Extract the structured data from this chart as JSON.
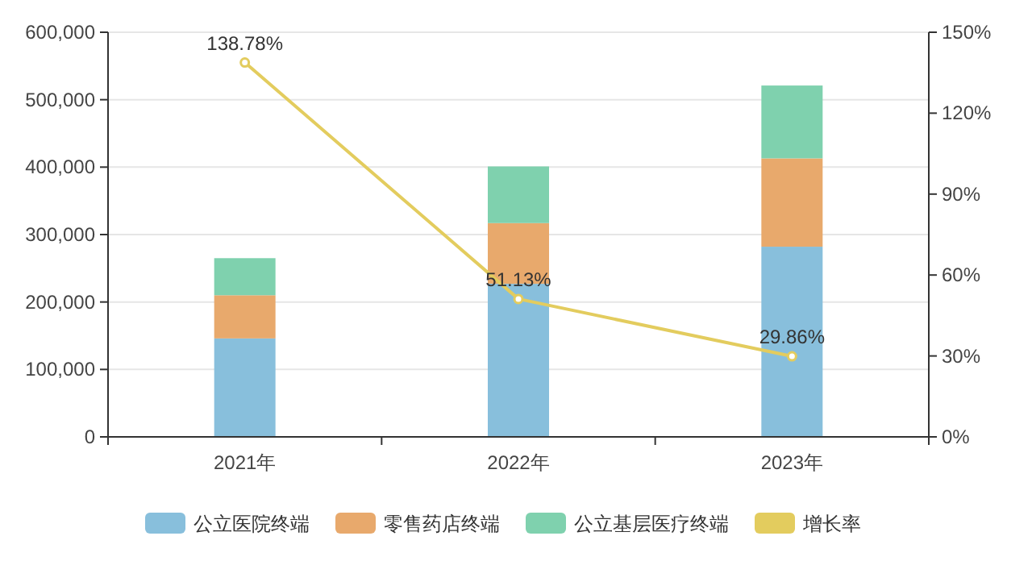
{
  "chart_data": {
    "type": "bar",
    "categories": [
      "2021年",
      "2022年",
      "2023年"
    ],
    "stacked": true,
    "series": [
      {
        "name": "公立医院终端",
        "color": "#88bfdc",
        "values": [
          146000,
          227000,
          282000
        ]
      },
      {
        "name": "零售药店终端",
        "color": "#e8a96c",
        "values": [
          64000,
          90000,
          131000
        ]
      },
      {
        "name": "公立基层医疗终端",
        "color": "#7fd1ae",
        "values": [
          55000,
          84000,
          108000
        ]
      },
      {
        "name": "增长率",
        "type": "line",
        "axis": "y2",
        "color": "#e3cc5e",
        "marker": "circle",
        "values": [
          138.78,
          51.13,
          29.86
        ],
        "value_labels": [
          "138.78%",
          "51.13%",
          "29.86%"
        ]
      }
    ],
    "ylim": [
      0,
      600000
    ],
    "yticks": [
      {
        "value": 0,
        "label": "0"
      },
      {
        "value": 100000,
        "label": "100,000"
      },
      {
        "value": 200000,
        "label": "200,000"
      },
      {
        "value": 300000,
        "label": "300,000"
      },
      {
        "value": 400000,
        "label": "400,000"
      },
      {
        "value": 500000,
        "label": "500,000"
      },
      {
        "value": 600000,
        "label": "600,000"
      }
    ],
    "y2lim": [
      0,
      150
    ],
    "y2ticks": [
      {
        "value": 0,
        "label": "0%"
      },
      {
        "value": 30,
        "label": "30%"
      },
      {
        "value": 60,
        "label": "60%"
      },
      {
        "value": 90,
        "label": "90%"
      },
      {
        "value": 120,
        "label": "120%"
      },
      {
        "value": 150,
        "label": "150%"
      }
    ],
    "grid": "y",
    "legend": "bottom"
  }
}
